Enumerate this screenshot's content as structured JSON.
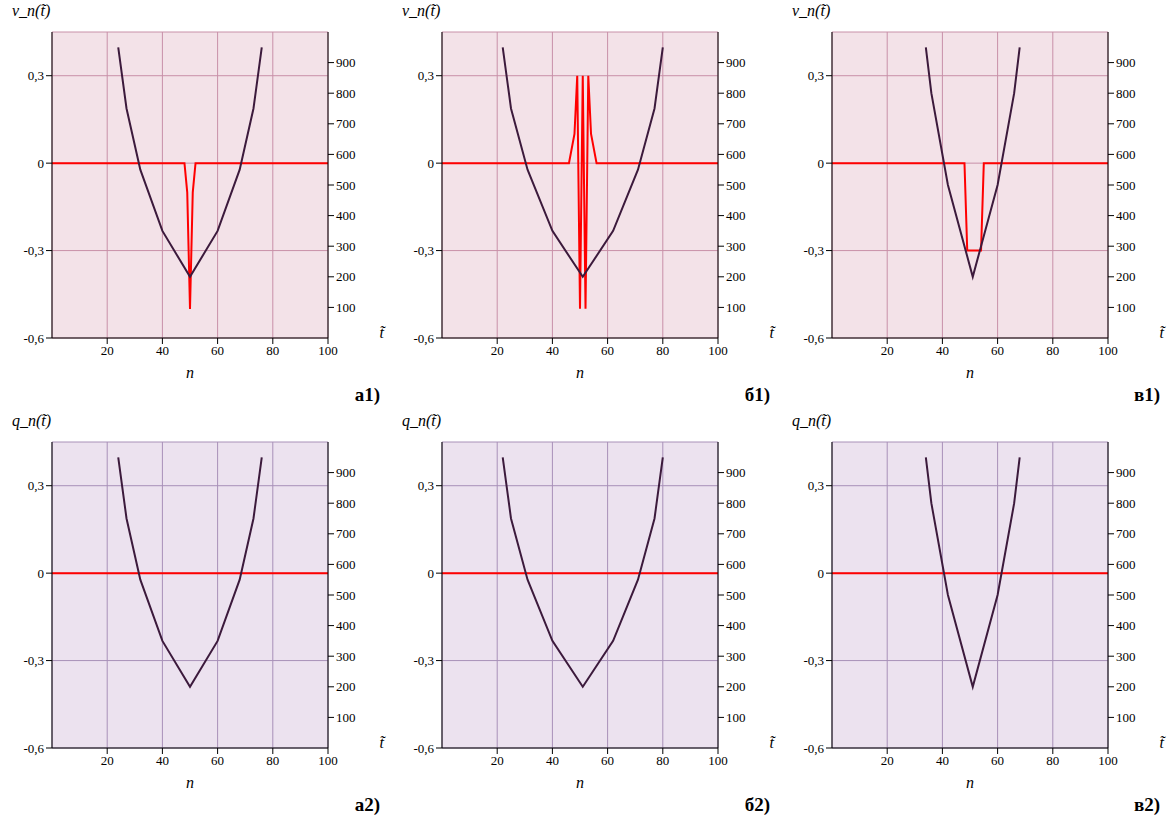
{
  "chart_data": [
    {
      "type": "line",
      "title": "а1)",
      "y_label": "v_n(t̃)",
      "x_label": "n",
      "y2_label": "t̃",
      "xlim": [
        0,
        100
      ],
      "xticks": [
        20,
        40,
        60,
        80,
        100
      ],
      "ylim": [
        -0.6,
        0.45
      ],
      "yticks": [
        {
          "value": -0.6,
          "label": "-0,6"
        },
        {
          "value": -0.3,
          "label": "-0,3"
        },
        0,
        {
          "value": 0.3,
          "label": "0,3"
        }
      ],
      "y2lim": [
        0,
        1000
      ],
      "y2ticks": [
        100,
        200,
        300,
        400,
        500,
        600,
        700,
        800,
        900
      ],
      "grid": true,
      "series": [
        {
          "color": "#ff0000",
          "x": [
            0,
            45,
            48,
            49,
            50,
            51,
            52,
            55,
            100
          ],
          "values": [
            0,
            0,
            0,
            -0.1,
            -0.5,
            -0.1,
            0,
            0,
            0
          ]
        },
        {
          "color": "#3c1a3c",
          "axis": "y2",
          "x": [
            24,
            27,
            32,
            40,
            50,
            60,
            68,
            73,
            76
          ],
          "values": [
            950,
            750,
            550,
            350,
            200,
            350,
            550,
            750,
            950
          ]
        }
      ]
    },
    {
      "type": "line",
      "title": "б1)",
      "y_label": "v_n(t̃)",
      "x_label": "n",
      "y2_label": "t̃",
      "xlim": [
        0,
        100
      ],
      "xticks": [
        20,
        40,
        60,
        80,
        100
      ],
      "ylim": [
        -0.6,
        0.45
      ],
      "yticks": [
        {
          "value": -0.6,
          "label": "-0,6"
        },
        {
          "value": -0.3,
          "label": "-0,3"
        },
        0,
        {
          "value": 0.3,
          "label": "0,3"
        }
      ],
      "y2lim": [
        0,
        1000
      ],
      "y2ticks": [
        100,
        200,
        300,
        400,
        500,
        600,
        700,
        800,
        900
      ],
      "grid": true,
      "series": [
        {
          "color": "#ff0000",
          "x": [
            0,
            46,
            48,
            49,
            50,
            51,
            52,
            53,
            54,
            56,
            100
          ],
          "values": [
            0,
            0,
            0.1,
            0.3,
            -0.5,
            0.3,
            -0.5,
            0.3,
            0.1,
            0,
            0
          ]
        },
        {
          "color": "#3c1a3c",
          "axis": "y2",
          "x": [
            22,
            25,
            31,
            40,
            51,
            62,
            71,
            77,
            80
          ],
          "values": [
            950,
            750,
            550,
            350,
            200,
            350,
            550,
            750,
            950
          ]
        }
      ]
    },
    {
      "type": "line",
      "title": "в1)",
      "y_label": "v_n(t̃)",
      "x_label": "n",
      "y2_label": "t̃",
      "xlim": [
        0,
        100
      ],
      "xticks": [
        20,
        40,
        60,
        80,
        100
      ],
      "ylim": [
        -0.6,
        0.45
      ],
      "yticks": [
        {
          "value": -0.6,
          "label": "-0,6"
        },
        {
          "value": -0.3,
          "label": "-0,3"
        },
        0,
        {
          "value": 0.3,
          "label": "0,3"
        }
      ],
      "y2lim": [
        0,
        1000
      ],
      "y2ticks": [
        100,
        200,
        300,
        400,
        500,
        600,
        700,
        800,
        900
      ],
      "grid": true,
      "series": [
        {
          "color": "#ff0000",
          "x": [
            0,
            48,
            49,
            50,
            51,
            52,
            53,
            54,
            55,
            100
          ],
          "values": [
            0,
            0,
            -0.3,
            -0.3,
            -0.3,
            -0.3,
            -0.3,
            -0.3,
            0,
            0
          ]
        },
        {
          "color": "#3c1a3c",
          "axis": "y2",
          "x": [
            34,
            36,
            42,
            51,
            60,
            66,
            68
          ],
          "values": [
            950,
            800,
            500,
            200,
            500,
            800,
            950
          ]
        }
      ]
    },
    {
      "type": "line",
      "title": "а2)",
      "y_label": "q_n(t̃)",
      "x_label": "n",
      "y2_label": "t̃",
      "xlim": [
        0,
        100
      ],
      "xticks": [
        20,
        40,
        60,
        80,
        100
      ],
      "ylim": [
        -0.6,
        0.45
      ],
      "yticks": [
        {
          "value": -0.6,
          "label": "-0,6"
        },
        {
          "value": -0.3,
          "label": "-0,3"
        },
        0,
        {
          "value": 0.3,
          "label": "0,3"
        }
      ],
      "y2lim": [
        0,
        1000
      ],
      "y2ticks": [
        100,
        200,
        300,
        400,
        500,
        600,
        700,
        800,
        900
      ],
      "grid": true,
      "series": [
        {
          "color": "#ff0000",
          "x": [
            0,
            100
          ],
          "values": [
            0,
            0
          ]
        },
        {
          "color": "#3c1a3c",
          "axis": "y2",
          "x": [
            24,
            27,
            32,
            40,
            50,
            60,
            68,
            73,
            76
          ],
          "values": [
            950,
            750,
            550,
            350,
            200,
            350,
            550,
            750,
            950
          ]
        }
      ]
    },
    {
      "type": "line",
      "title": "б2)",
      "y_label": "q_n(t̃)",
      "x_label": "n",
      "y2_label": "t̃",
      "xlim": [
        0,
        100
      ],
      "xticks": [
        20,
        40,
        60,
        80,
        100
      ],
      "ylim": [
        -0.6,
        0.45
      ],
      "yticks": [
        {
          "value": -0.6,
          "label": "-0,6"
        },
        {
          "value": -0.3,
          "label": "-0,3"
        },
        0,
        {
          "value": 0.3,
          "label": "0,3"
        }
      ],
      "y2lim": [
        0,
        1000
      ],
      "y2ticks": [
        100,
        200,
        300,
        400,
        500,
        600,
        700,
        800,
        900
      ],
      "grid": true,
      "series": [
        {
          "color": "#ff0000",
          "x": [
            0,
            100
          ],
          "values": [
            0,
            0
          ]
        },
        {
          "color": "#3c1a3c",
          "axis": "y2",
          "x": [
            22,
            25,
            31,
            40,
            51,
            62,
            71,
            77,
            80
          ],
          "values": [
            950,
            750,
            550,
            350,
            200,
            350,
            550,
            750,
            950
          ]
        }
      ]
    },
    {
      "type": "line",
      "title": "в2)",
      "y_label": "q_n(t̃)",
      "x_label": "n",
      "y2_label": "t̃",
      "xlim": [
        0,
        100
      ],
      "xticks": [
        20,
        40,
        60,
        80,
        100
      ],
      "ylim": [
        -0.6,
        0.45
      ],
      "yticks": [
        {
          "value": -0.6,
          "label": "-0,6"
        },
        {
          "value": -0.3,
          "label": "-0,3"
        },
        0,
        {
          "value": 0.3,
          "label": "0,3"
        }
      ],
      "y2lim": [
        0,
        1000
      ],
      "y2ticks": [
        100,
        200,
        300,
        400,
        500,
        600,
        700,
        800,
        900
      ],
      "grid": true,
      "series": [
        {
          "color": "#ff0000",
          "x": [
            0,
            100
          ],
          "values": [
            0,
            0
          ]
        },
        {
          "color": "#3c1a3c",
          "axis": "y2",
          "x": [
            34,
            36,
            42,
            51,
            60,
            66,
            68
          ],
          "values": [
            950,
            800,
            500,
            200,
            500,
            800,
            950
          ]
        }
      ]
    }
  ]
}
